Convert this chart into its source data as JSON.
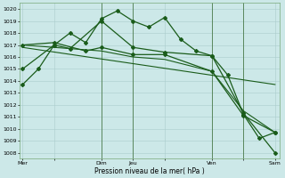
{
  "title": "",
  "xlabel": "Pression niveau de la mer( hPa )",
  "ylabel": "",
  "background_color": "#cce8e8",
  "grid_color": "#aacccc",
  "line_color": "#1a5c1a",
  "ylim": [
    1007.5,
    1020.5
  ],
  "xlim": [
    -0.2,
    16.3
  ],
  "xtick_labels": [
    "Mer",
    "",
    "Dim",
    "Jeu",
    "",
    "Ven",
    "",
    "Sam"
  ],
  "xtick_positions": [
    0,
    2,
    5,
    7,
    9,
    12,
    14,
    16
  ],
  "ytick_start": 1008,
  "ytick_end": 1020,
  "ytick_step": 1,
  "vlines": [
    5,
    7,
    12,
    14
  ],
  "series": [
    {
      "x": [
        0,
        1,
        2,
        3,
        4,
        5,
        6,
        7,
        8,
        9,
        10,
        11,
        12,
        13,
        14,
        15,
        16
      ],
      "y": [
        1013.7,
        1015.0,
        1017.0,
        1018.0,
        1017.2,
        1019.2,
        1019.85,
        1019.0,
        1018.5,
        1019.3,
        1017.5,
        1016.5,
        1016.1,
        1014.5,
        1011.2,
        1009.2,
        1009.7
      ],
      "marker": "D",
      "markersize": 2.0,
      "linewidth": 0.9
    },
    {
      "x": [
        0,
        2,
        3,
        5,
        7,
        9,
        12,
        14,
        16
      ],
      "y": [
        1015.0,
        1017.0,
        1016.7,
        1019.0,
        1016.8,
        1016.4,
        1016.1,
        1011.3,
        1008.0
      ],
      "marker": "D",
      "markersize": 2.0,
      "linewidth": 0.9
    },
    {
      "x": [
        0,
        2,
        4,
        5,
        7,
        9,
        12,
        14,
        16
      ],
      "y": [
        1017.0,
        1017.2,
        1016.5,
        1016.8,
        1016.2,
        1016.2,
        1014.8,
        1011.1,
        1009.7
      ],
      "marker": "D",
      "markersize": 2.0,
      "linewidth": 0.9
    },
    {
      "x": [
        0,
        2,
        5,
        7,
        9,
        12,
        14,
        16
      ],
      "y": [
        1017.0,
        1016.8,
        1016.5,
        1016.0,
        1015.8,
        1014.8,
        1011.5,
        1009.7
      ],
      "marker": null,
      "markersize": 0,
      "linewidth": 0.8
    },
    {
      "x": [
        0,
        16
      ],
      "y": [
        1016.8,
        1013.7
      ],
      "marker": null,
      "markersize": 0,
      "linewidth": 0.8
    }
  ]
}
